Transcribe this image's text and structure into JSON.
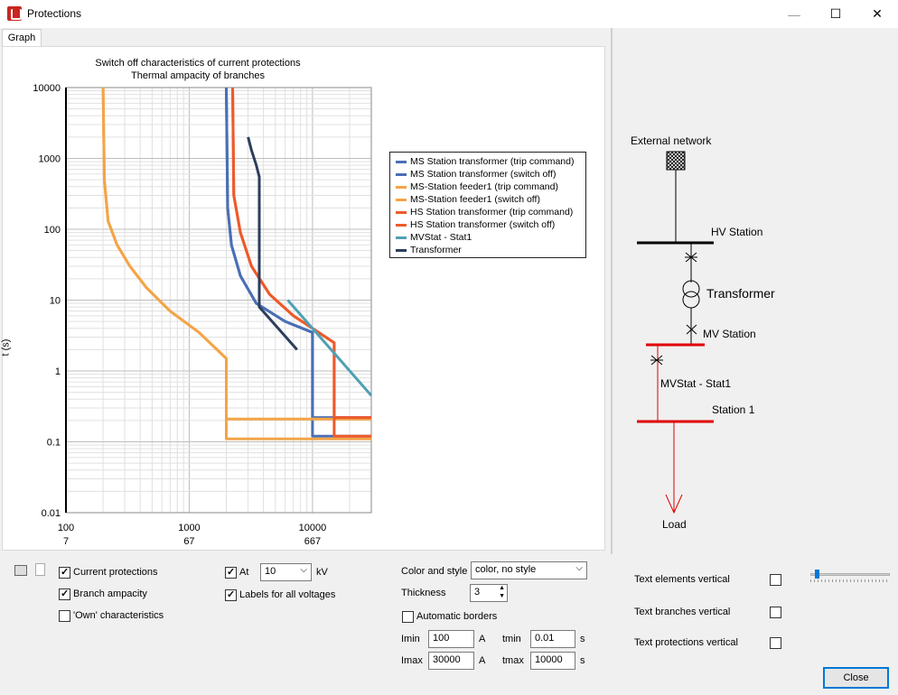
{
  "window": {
    "title": "Protections",
    "controls": {
      "minimize": "—",
      "maximize": "☐",
      "close": "✕"
    }
  },
  "tabs": [
    {
      "label": "Graph"
    }
  ],
  "chart_data": {
    "type": "line",
    "title": "Switch off characteristics of current protections",
    "subtitle": "Thermal ampacity of branches",
    "ylabel": "t (s)",
    "xscale": "log",
    "yscale": "log",
    "xlim": [
      100,
      30000
    ],
    "ylim": [
      0.01,
      10000
    ],
    "x_ticks": [
      "100",
      "1000",
      "10000"
    ],
    "x_ticks_secondary": [
      "7",
      "67",
      "667"
    ],
    "y_ticks": [
      "10000",
      "1000",
      "100",
      "10",
      "1",
      "0.1",
      "0.01"
    ],
    "legend_position": "right",
    "grid": true,
    "series": [
      {
        "name": "MS Station transformer (trip command)",
        "color": "#4a6fb5",
        "points": [
          [
            2000,
            10000
          ],
          [
            2050,
            200
          ],
          [
            2200,
            60
          ],
          [
            2600,
            22
          ],
          [
            3500,
            9
          ],
          [
            6000,
            5
          ],
          [
            10000,
            3.5
          ],
          [
            10000,
            0.22
          ],
          [
            30000,
            0.22
          ]
        ]
      },
      {
        "name": "MS Station transformer (switch off)",
        "color": "#4a6fb5",
        "points": [
          [
            2000,
            10000
          ],
          [
            2050,
            200
          ],
          [
            2200,
            60
          ],
          [
            2600,
            22
          ],
          [
            3500,
            9
          ],
          [
            6000,
            5
          ],
          [
            10000,
            3.5
          ],
          [
            10000,
            0.12
          ],
          [
            30000,
            0.12
          ]
        ]
      },
      {
        "name": "MS-Station feeder1 (trip command)",
        "color": "#f4a447",
        "points": [
          [
            200,
            10000
          ],
          [
            205,
            500
          ],
          [
            220,
            130
          ],
          [
            260,
            60
          ],
          [
            330,
            30
          ],
          [
            450,
            15
          ],
          [
            700,
            7
          ],
          [
            1200,
            3.5
          ],
          [
            2000,
            1.5
          ],
          [
            2000,
            0.21
          ],
          [
            30000,
            0.21
          ]
        ]
      },
      {
        "name": "MS-Station feeder1 (switch off)",
        "color": "#f4a447",
        "points": [
          [
            200,
            10000
          ],
          [
            205,
            500
          ],
          [
            220,
            130
          ],
          [
            260,
            60
          ],
          [
            330,
            30
          ],
          [
            450,
            15
          ],
          [
            700,
            7
          ],
          [
            1200,
            3.5
          ],
          [
            2000,
            1.5
          ],
          [
            2000,
            0.11
          ],
          [
            30000,
            0.11
          ]
        ]
      },
      {
        "name": "HS Station transformer (trip command)",
        "color": "#ee5a2a",
        "points": [
          [
            2250,
            10000
          ],
          [
            2300,
            300
          ],
          [
            2600,
            90
          ],
          [
            3200,
            30
          ],
          [
            4500,
            12
          ],
          [
            7000,
            6
          ],
          [
            10000,
            4
          ],
          [
            15000,
            2.5
          ],
          [
            15000,
            0.22
          ],
          [
            30000,
            0.22
          ]
        ]
      },
      {
        "name": "HS Station transformer (switch off)",
        "color": "#ee5a2a",
        "points": [
          [
            2250,
            10000
          ],
          [
            2300,
            300
          ],
          [
            2600,
            90
          ],
          [
            3200,
            30
          ],
          [
            4500,
            12
          ],
          [
            7000,
            6
          ],
          [
            10000,
            4
          ],
          [
            15000,
            2.5
          ],
          [
            15000,
            0.12
          ],
          [
            30000,
            0.12
          ]
        ]
      },
      {
        "name": "MVStat - Stat1",
        "color": "#50a0b4",
        "points": [
          [
            6300,
            10
          ],
          [
            30000,
            0.45
          ]
        ]
      },
      {
        "name": "Transformer",
        "color": "#2c3e5c",
        "points": [
          [
            3000,
            2000
          ],
          [
            3200,
            1300
          ],
          [
            3500,
            800
          ],
          [
            3700,
            550
          ],
          [
            3700,
            8
          ],
          [
            7500,
            2
          ]
        ]
      }
    ]
  },
  "network": {
    "external_network": "External network",
    "hv_station": "HV Station",
    "transformer": "Transformer",
    "mv_station": "MV Station",
    "branch": "MVStat - Stat1",
    "station1": "Station 1",
    "load": "Load"
  },
  "options": {
    "current_protections": {
      "label": "Current protections",
      "checked": true
    },
    "branch_ampacity": {
      "label": "Branch ampacity",
      "checked": true
    },
    "own_characteristics": {
      "label": "'Own' characteristics",
      "checked": false
    },
    "at": {
      "label": "At",
      "checked": true,
      "value": "10",
      "unit": "kV"
    },
    "labels_all_voltages": {
      "label": "Labels for all voltages",
      "checked": true
    },
    "color_style": {
      "label": "Color and style",
      "value": "color, no style"
    },
    "thickness": {
      "label": "Thickness",
      "value": "3"
    },
    "auto_borders": {
      "label": "Automatic borders",
      "checked": false
    },
    "imin": {
      "label": "Imin",
      "value": "100",
      "unit": "A"
    },
    "imax": {
      "label": "Imax",
      "value": "30000",
      "unit": "A"
    },
    "tmin": {
      "label": "tmin",
      "value": "0.01",
      "unit": "s"
    },
    "tmax": {
      "label": "tmax",
      "value": "10000",
      "unit": "s"
    },
    "text_elements_vertical": {
      "label": "Text elements vertical",
      "checked": false
    },
    "text_branches_vertical": {
      "label": "Text branches vertical",
      "checked": false
    },
    "text_protections_vertical": {
      "label": "Text protections vertical",
      "checked": false
    },
    "close_label": "Close"
  }
}
